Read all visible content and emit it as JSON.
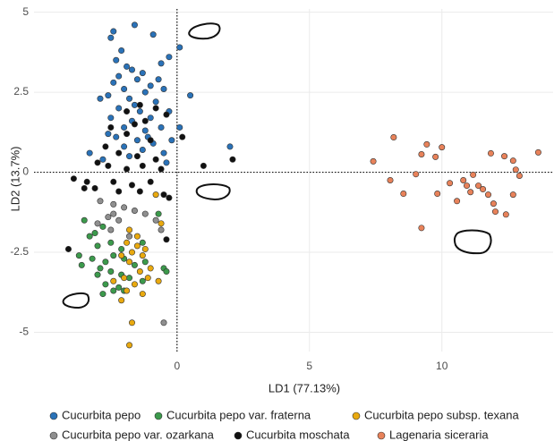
{
  "chart_data": {
    "type": "scatter",
    "x_label": "LD1 (77.13%)",
    "y_label": "LD2 (13.7%)",
    "xlim": [
      -5.4,
      14.2
    ],
    "ylim": [
      -5.6,
      5.1
    ],
    "xticks": [
      0,
      5,
      10
    ],
    "yticks": [
      -5,
      -2.5,
      0,
      2.5,
      5
    ],
    "grid": true,
    "series": [
      {
        "name": "Cucurbita pepo",
        "color": "#2a72b8",
        "x": [
          -1.6,
          -2.4,
          -2.5,
          -0.9,
          0.1,
          -2.3,
          -1.9,
          -1.7,
          -2.2,
          -1.3,
          -0.6,
          -0.3,
          -2.4,
          -1.5,
          -1.0,
          -2.0,
          -1.2,
          -0.5,
          0.5,
          -2.6,
          -1.8,
          -0.8,
          -2.9,
          -2.2,
          -1.4,
          -0.3,
          -2.5,
          -1.7,
          -1.0,
          -2.0,
          -1.2,
          -0.6,
          -2.6,
          -2.3,
          -1.5,
          -0.9,
          -0.2,
          0.1,
          -2.0,
          -1.3,
          -0.5,
          -3.3,
          -2.8,
          -1.8,
          -0.4,
          2.0,
          -1.1,
          -1.6,
          -0.7,
          -2.1
        ],
        "y": [
          4.6,
          4.4,
          4.2,
          4.3,
          3.9,
          3.5,
          3.3,
          3.2,
          3.0,
          3.1,
          3.4,
          3.6,
          2.8,
          2.9,
          2.7,
          2.6,
          2.5,
          2.6,
          2.4,
          2.4,
          2.3,
          2.2,
          2.3,
          2.0,
          1.9,
          1.9,
          1.7,
          1.6,
          1.7,
          1.4,
          1.3,
          1.4,
          1.2,
          1.1,
          1.0,
          0.9,
          1.0,
          1.4,
          0.8,
          0.7,
          0.6,
          0.6,
          0.4,
          0.5,
          0.3,
          0.8,
          1.1,
          2.1,
          2.9,
          3.8
        ]
      },
      {
        "name": "Cucurbita pepo var. fraterna",
        "color": "#3c9a4c",
        "x": [
          -3.5,
          -2.8,
          -3.3,
          -3.0,
          -2.5,
          -3.7,
          -3.2,
          -2.7,
          -2.4,
          -2.0,
          -1.6,
          -1.2,
          -3.6,
          -2.9,
          -2.5,
          -2.1,
          -1.8,
          -1.3,
          -2.7,
          -2.2,
          -2.8,
          -2.4,
          -0.5,
          -0.4,
          -2.1,
          -1.3,
          -0.7,
          -3.1,
          -3.0,
          -2.0
        ],
        "y": [
          -1.5,
          -1.7,
          -2.0,
          -2.3,
          -2.2,
          -2.6,
          -2.7,
          -2.8,
          -2.6,
          -2.7,
          -2.9,
          -2.8,
          -2.9,
          -3.0,
          -3.1,
          -3.2,
          -3.3,
          -3.4,
          -3.5,
          -3.6,
          -3.8,
          -3.7,
          -3.0,
          -3.1,
          -2.4,
          -2.2,
          -1.3,
          -1.9,
          -3.2,
          -3.7
        ]
      },
      {
        "name": "Cucurbita pepo subsp. texana",
        "color": "#e9a90f",
        "x": [
          -0.8,
          -1.8,
          -1.5,
          -1.9,
          -1.5,
          -1.7,
          -1.3,
          -2.1,
          -1.8,
          -1.4,
          -1.0,
          -0.7,
          -2.0,
          -1.6,
          -1.1,
          -2.4,
          -1.9,
          -1.3,
          -2.1,
          -1.7,
          -1.8,
          -0.6,
          -1.2
        ],
        "y": [
          -0.7,
          -1.8,
          -2.0,
          -2.2,
          -2.3,
          -2.5,
          -2.6,
          -2.6,
          -2.8,
          -3.1,
          -3.0,
          -3.4,
          -3.3,
          -3.5,
          -3.3,
          -3.4,
          -3.7,
          -3.8,
          -4.0,
          -4.7,
          -5.4,
          -1.6,
          -2.4
        ]
      },
      {
        "name": "Cucurbita pepo var. ozarkana",
        "color": "#8f8f8f",
        "x": [
          -2.9,
          -2.4,
          -2.0,
          -2.6,
          -2.2,
          -1.6,
          -1.2,
          -0.8,
          -0.6,
          -3.0,
          -2.5,
          -1.8,
          -0.5,
          -2.4
        ],
        "y": [
          -0.9,
          -1.0,
          -1.1,
          -1.4,
          -1.5,
          -1.2,
          -1.3,
          -1.5,
          -1.8,
          -1.6,
          -1.8,
          -2.0,
          -4.7,
          -1.3
        ]
      },
      {
        "name": "Cucurbita moschata",
        "color": "#111111",
        "x": [
          -1.4,
          -0.8,
          -1.9,
          -0.4,
          0.2,
          -2.5,
          -1.6,
          -1.2,
          -1.9,
          -1.0,
          -2.7,
          -2.2,
          -1.5,
          -0.8,
          1.0,
          -3.0,
          -2.6,
          -1.9,
          -1.3,
          -0.6,
          2.1,
          -3.9,
          -3.4,
          -2.4,
          -1.7,
          -1.0,
          -3.1,
          -2.2,
          -1.4,
          -0.5,
          -4.1,
          -3.5,
          -0.4,
          -0.3
        ],
        "y": [
          2.1,
          2.0,
          1.9,
          1.8,
          1.1,
          1.4,
          1.5,
          1.6,
          1.2,
          1.0,
          0.8,
          0.6,
          0.5,
          0.4,
          0.2,
          0.3,
          0.2,
          0.1,
          0.2,
          0.1,
          0.4,
          -0.2,
          -0.3,
          -0.3,
          -0.4,
          -0.3,
          -0.5,
          -0.6,
          -0.6,
          -0.7,
          -2.4,
          -0.5,
          -2.1,
          -0.8
        ]
      },
      {
        "name": "Lagenaria siceraria",
        "color": "#e8825a",
        "x": [
          8.18,
          7.41,
          9.23,
          9.43,
          10.0,
          9.76,
          8.05,
          8.55,
          9.02,
          9.83,
          10.3,
          10.57,
          10.81,
          10.94,
          11.08,
          11.18,
          11.38,
          11.55,
          11.85,
          12.36,
          12.69,
          12.79,
          12.93,
          13.64,
          11.75,
          11.95,
          12.02,
          12.42,
          12.69,
          9.23
        ],
        "y": [
          1.09,
          0.34,
          0.56,
          0.87,
          0.78,
          0.48,
          -0.25,
          -0.67,
          -0.06,
          -0.67,
          -0.34,
          -0.9,
          -0.25,
          -0.42,
          -0.62,
          -0.08,
          -0.42,
          -0.53,
          0.59,
          0.5,
          0.36,
          0.08,
          -0.11,
          0.62,
          -0.7,
          -0.98,
          -1.23,
          -1.32,
          -0.7,
          -1.74
        ]
      }
    ]
  }
}
